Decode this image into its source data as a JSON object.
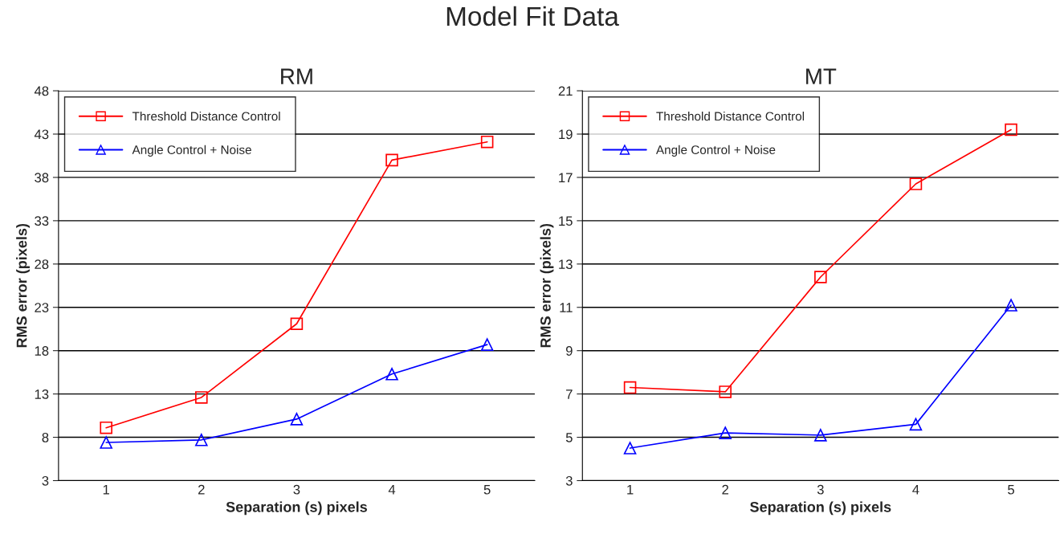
{
  "chart_data": [
    {
      "type": "line",
      "title": "RM",
      "annotations": [
        "Model Fit Data"
      ],
      "xlabel": "Separation (s) pixels",
      "ylabel": "RMS error (pixels)",
      "categories": [
        "1",
        "2",
        "3",
        "4",
        "5"
      ],
      "ylim": [
        3,
        48
      ],
      "yticks": [
        3,
        8,
        13,
        18,
        23,
        28,
        33,
        38,
        43,
        48
      ],
      "grid": "y",
      "legend": "top left",
      "series": [
        {
          "name": "Threshold Distance Control",
          "color": "#ff0000",
          "marker": "square",
          "values": [
            9.1,
            12.6,
            21.1,
            40.0,
            42.1
          ]
        },
        {
          "name": "Angle Control + Noise",
          "color": "#0000ff",
          "marker": "triangle",
          "values": [
            7.4,
            7.7,
            10.1,
            15.3,
            18.7
          ]
        }
      ]
    },
    {
      "type": "line",
      "title": "MT",
      "xlabel": "Separation (s) pixels",
      "ylabel": "RMS error (pixels)",
      "categories": [
        "1",
        "2",
        "3",
        "4",
        "5"
      ],
      "ylim": [
        3,
        21
      ],
      "yticks": [
        3,
        5,
        7,
        9,
        11,
        13,
        15,
        17,
        19,
        21
      ],
      "grid": "y",
      "legend": "top left",
      "series": [
        {
          "name": "Threshold Distance Control",
          "color": "#ff0000",
          "marker": "square",
          "values": [
            7.3,
            7.1,
            12.4,
            16.7,
            19.2
          ]
        },
        {
          "name": "Angle Control + Noise",
          "color": "#0000ff",
          "marker": "triangle",
          "values": [
            4.5,
            5.2,
            5.1,
            5.6,
            11.1
          ]
        }
      ]
    }
  ]
}
